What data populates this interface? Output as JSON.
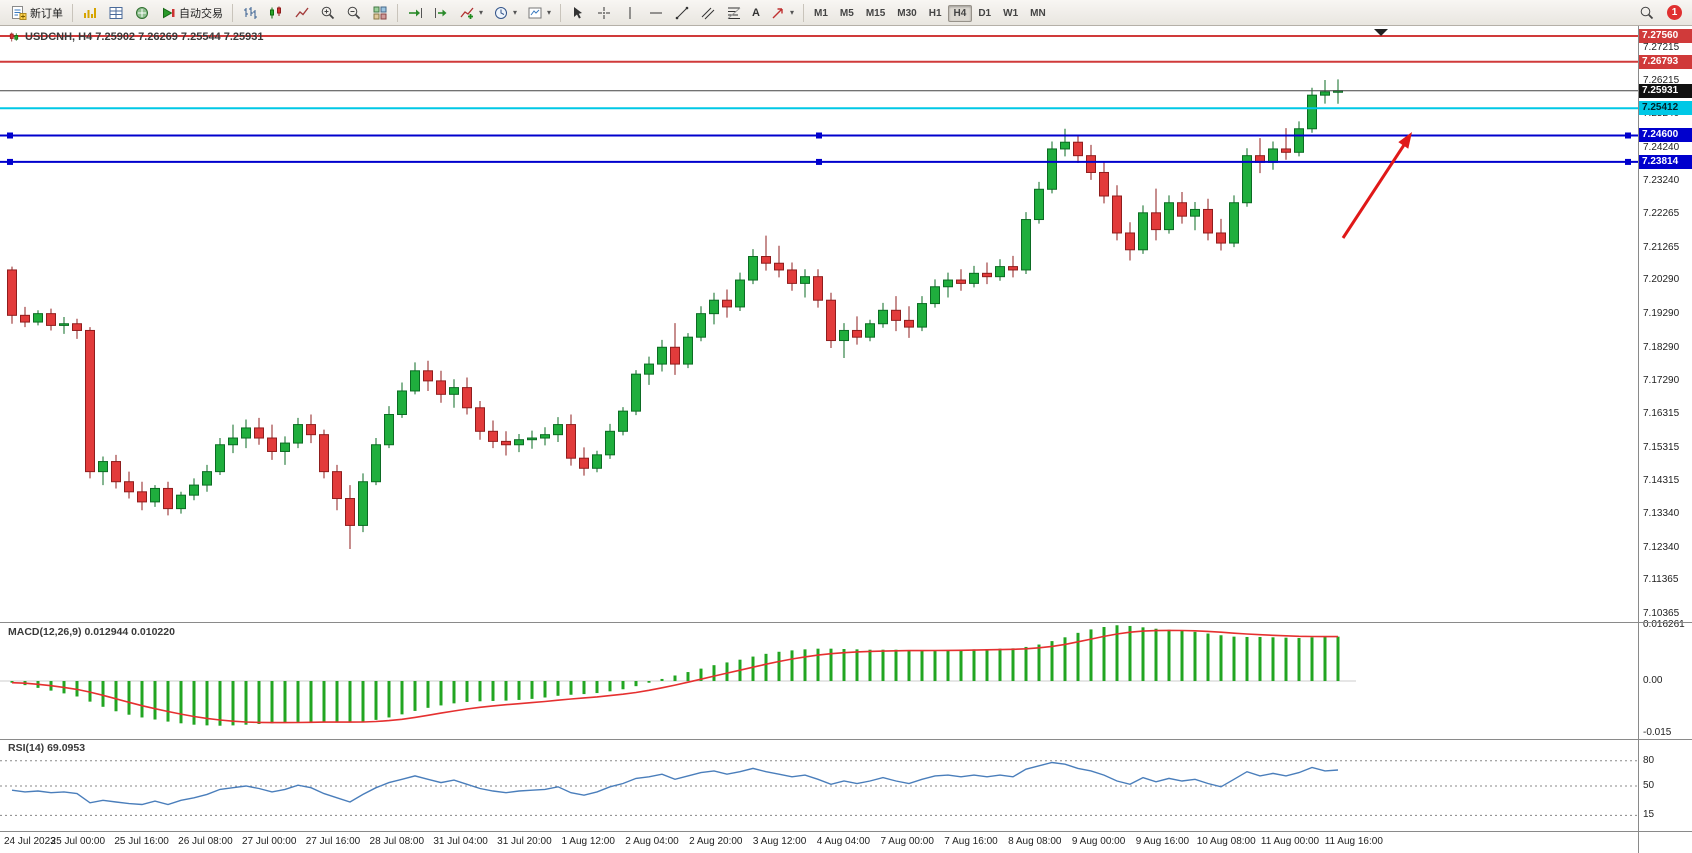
{
  "toolbar": {
    "new_order_label": "新订单",
    "autotrading_label": "自动交易",
    "timeframes": [
      "M1",
      "M5",
      "M15",
      "M30",
      "H1",
      "H4",
      "D1",
      "W1",
      "MN"
    ],
    "active_timeframe": "H4",
    "notification_count": "1",
    "icons": {
      "caret": "▾",
      "text_tool": "A"
    }
  },
  "chart": {
    "title": "USDCNH, H4 7.25902 7.26269 7.25544 7.25931",
    "symbol": "USDCNH",
    "period": "H4",
    "open": "7.25902",
    "high": "7.26269",
    "low": "7.25544",
    "close": "7.25931",
    "colors": {
      "bull": "#1fae3d",
      "bull_border": "#0b6b23",
      "bear": "#e23b3b",
      "bear_border": "#8f1d1d",
      "macd_hist": "#22a522",
      "macd_signal": "#e53030",
      "rsi_line": "#4a7ebb",
      "arrow": "#e01818"
    },
    "price_axis_ticks": [
      7.27215,
      7.26215,
      7.2524,
      7.2424,
      7.2324,
      7.22265,
      7.21265,
      7.2029,
      7.1929,
      7.1829,
      7.1729,
      7.16315,
      7.15315,
      7.14315,
      7.1334,
      7.1234,
      7.11365,
      7.10365
    ],
    "hlines": [
      {
        "price": 7.2756,
        "label": "7.27560",
        "color": "#d03a3a",
        "badge_bg": "#d03a3a",
        "badge_fg": "#ffffff",
        "width": 2
      },
      {
        "price": 7.26793,
        "label": "7.26793",
        "color": "#d03a3a",
        "badge_bg": "#d03a3a",
        "badge_fg": "#ffffff",
        "width": 2
      },
      {
        "price": 7.25931,
        "label": "7.25931",
        "color": "#444444",
        "badge_bg": "#111111",
        "badge_fg": "#ffffff",
        "width": 1
      },
      {
        "price": 7.25412,
        "label": "7.25412",
        "color": "#00c8e6",
        "badge_bg": "#00c8e6",
        "badge_fg": "#00222a",
        "width": 2
      },
      {
        "price": 7.246,
        "label": "7.24600",
        "color": "#0000cd",
        "badge_bg": "#0000cd",
        "badge_fg": "#ffffff",
        "width": 2,
        "handles": true
      },
      {
        "price": 7.23814,
        "label": "7.23814",
        "color": "#0000cd",
        "badge_bg": "#0000cd",
        "badge_fg": "#ffffff",
        "width": 2,
        "handles": true
      }
    ]
  },
  "macd": {
    "label": "MACD(12,26,9) 0.012944 0.010220",
    "scale": [
      {
        "v": 0.016261,
        "label": "0.016261"
      },
      {
        "v": 0,
        "label": "0.00"
      },
      {
        "v": -0.015,
        "label": "-0.015"
      }
    ]
  },
  "rsi": {
    "label": "RSI(14) 69.0953",
    "levels": [
      {
        "v": 80,
        "label": "80"
      },
      {
        "v": 50,
        "label": "50"
      },
      {
        "v": 15,
        "label": "15"
      }
    ]
  },
  "time_axis": [
    "24 Jul 2023",
    "25 Jul 00:00",
    "25 Jul 16:00",
    "26 Jul 08:00",
    "27 Jul 00:00",
    "27 Jul 16:00",
    "28 Jul 08:00",
    "31 Jul 04:00",
    "31 Jul 20:00",
    "1 Aug 12:00",
    "2 Aug 04:00",
    "2 Aug 20:00",
    "3 Aug 12:00",
    "4 Aug 04:00",
    "7 Aug 00:00",
    "7 Aug 16:00",
    "8 Aug 08:00",
    "9 Aug 00:00",
    "9 Aug 16:00",
    "10 Aug 08:00",
    "11 Aug 00:00",
    "11 Aug 16:00"
  ],
  "chart_data": [
    {
      "type": "candlestick",
      "title": "USDCNH H4",
      "y_range": [
        7.10365,
        7.279
      ],
      "ohlc": [
        [
          7.206,
          7.207,
          7.19,
          7.1925
        ],
        [
          7.1925,
          7.195,
          7.189,
          7.1905
        ],
        [
          7.1905,
          7.194,
          7.1895,
          7.193
        ],
        [
          7.193,
          7.1945,
          7.188,
          7.1895
        ],
        [
          7.1895,
          7.192,
          7.187,
          7.19
        ],
        [
          7.19,
          7.1915,
          7.1855,
          7.188
        ],
        [
          7.188,
          7.189,
          7.144,
          7.146
        ],
        [
          7.146,
          7.1505,
          7.142,
          7.149
        ],
        [
          7.149,
          7.151,
          7.141,
          7.143
        ],
        [
          7.143,
          7.146,
          7.138,
          7.14
        ],
        [
          7.14,
          7.143,
          7.1345,
          7.137
        ],
        [
          7.137,
          7.142,
          7.1355,
          7.141
        ],
        [
          7.141,
          7.143,
          7.133,
          7.135
        ],
        [
          7.135,
          7.14,
          7.1335,
          7.139
        ],
        [
          7.139,
          7.144,
          7.1375,
          7.142
        ],
        [
          7.142,
          7.148,
          7.14,
          7.146
        ],
        [
          7.146,
          7.156,
          7.145,
          7.154
        ],
        [
          7.154,
          7.16,
          7.1515,
          7.156
        ],
        [
          7.156,
          7.1615,
          7.153,
          7.159
        ],
        [
          7.159,
          7.162,
          7.154,
          7.156
        ],
        [
          7.156,
          7.16,
          7.1495,
          7.152
        ],
        [
          7.152,
          7.1565,
          7.148,
          7.1545
        ],
        [
          7.1545,
          7.162,
          7.153,
          7.16
        ],
        [
          7.16,
          7.163,
          7.1545,
          7.157
        ],
        [
          7.157,
          7.1585,
          7.144,
          7.146
        ],
        [
          7.146,
          7.148,
          7.1345,
          7.138
        ],
        [
          7.138,
          7.142,
          7.123,
          7.13
        ],
        [
          7.13,
          7.1455,
          7.128,
          7.143
        ],
        [
          7.143,
          7.156,
          7.142,
          7.154
        ],
        [
          7.154,
          7.1655,
          7.153,
          7.163
        ],
        [
          7.163,
          7.1725,
          7.162,
          7.17
        ],
        [
          7.17,
          7.1785,
          7.169,
          7.176
        ],
        [
          7.176,
          7.179,
          7.17,
          7.173
        ],
        [
          7.173,
          7.176,
          7.1665,
          7.169
        ],
        [
          7.169,
          7.1735,
          7.165,
          7.171
        ],
        [
          7.171,
          7.174,
          7.163,
          7.165
        ],
        [
          7.165,
          7.167,
          7.1555,
          7.158
        ],
        [
          7.158,
          7.1612,
          7.153,
          7.155
        ],
        [
          7.155,
          7.158,
          7.1508,
          7.154
        ],
        [
          7.154,
          7.1572,
          7.1518,
          7.1555
        ],
        [
          7.1555,
          7.1582,
          7.1528,
          7.156
        ],
        [
          7.156,
          7.1592,
          7.1538,
          7.157
        ],
        [
          7.157,
          7.1622,
          7.1548,
          7.16
        ],
        [
          7.16,
          7.163,
          7.1478,
          7.15
        ],
        [
          7.15,
          7.1532,
          7.1448,
          7.147
        ],
        [
          7.147,
          7.1522,
          7.1458,
          7.151
        ],
        [
          7.151,
          7.1602,
          7.1498,
          7.158
        ],
        [
          7.158,
          7.1652,
          7.1568,
          7.164
        ],
        [
          7.164,
          7.1762,
          7.1628,
          7.175
        ],
        [
          7.175,
          7.1802,
          7.1718,
          7.178
        ],
        [
          7.178,
          7.1852,
          7.1758,
          7.183
        ],
        [
          7.183,
          7.1902,
          7.1748,
          7.178
        ],
        [
          7.178,
          7.1872,
          7.1768,
          7.186
        ],
        [
          7.186,
          7.1952,
          7.1848,
          7.193
        ],
        [
          7.193,
          7.1992,
          7.1898,
          7.197
        ],
        [
          7.197,
          7.2002,
          7.1918,
          7.195
        ],
        [
          7.195,
          7.2052,
          7.1938,
          7.203
        ],
        [
          7.203,
          7.2122,
          7.2018,
          7.21
        ],
        [
          7.21,
          7.2162,
          7.2058,
          7.208
        ],
        [
          7.208,
          7.2132,
          7.2038,
          7.206
        ],
        [
          7.206,
          7.2082,
          7.1998,
          7.202
        ],
        [
          7.202,
          7.2062,
          7.1978,
          7.204
        ],
        [
          7.204,
          7.2062,
          7.1948,
          7.197
        ],
        [
          7.197,
          7.1992,
          7.1828,
          7.185
        ],
        [
          7.185,
          7.1902,
          7.1798,
          7.188
        ],
        [
          7.188,
          7.1922,
          7.1838,
          7.186
        ],
        [
          7.186,
          7.1912,
          7.1848,
          7.19
        ],
        [
          7.19,
          7.1962,
          7.1888,
          7.194
        ],
        [
          7.194,
          7.1982,
          7.1878,
          7.191
        ],
        [
          7.191,
          7.1952,
          7.1858,
          7.189
        ],
        [
          7.189,
          7.1982,
          7.1878,
          7.196
        ],
        [
          7.196,
          7.2032,
          7.1948,
          7.201
        ],
        [
          7.201,
          7.2052,
          7.1978,
          7.203
        ],
        [
          7.203,
          7.2062,
          7.1998,
          7.202
        ],
        [
          7.202,
          7.2072,
          7.2008,
          7.205
        ],
        [
          7.205,
          7.2082,
          7.2018,
          7.204
        ],
        [
          7.204,
          7.2092,
          7.2028,
          7.207
        ],
        [
          7.207,
          7.2102,
          7.2038,
          7.206
        ],
        [
          7.206,
          7.2232,
          7.2048,
          7.221
        ],
        [
          7.221,
          7.2322,
          7.2198,
          7.23
        ],
        [
          7.23,
          7.2442,
          7.2288,
          7.242
        ],
        [
          7.242,
          7.248,
          7.2398,
          7.244
        ],
        [
          7.244,
          7.2462,
          7.2378,
          7.24
        ],
        [
          7.24,
          7.2432,
          7.2328,
          7.235
        ],
        [
          7.235,
          7.2382,
          7.2258,
          7.228
        ],
        [
          7.228,
          7.2312,
          7.2148,
          7.217
        ],
        [
          7.217,
          7.2202,
          7.2088,
          7.212
        ],
        [
          7.212,
          7.2252,
          7.2108,
          7.223
        ],
        [
          7.223,
          7.2302,
          7.2148,
          7.218
        ],
        [
          7.218,
          7.2282,
          7.2168,
          7.226
        ],
        [
          7.226,
          7.2292,
          7.2198,
          7.222
        ],
        [
          7.222,
          7.2262,
          7.2178,
          7.224
        ],
        [
          7.224,
          7.2272,
          7.2148,
          7.217
        ],
        [
          7.217,
          7.2212,
          7.2118,
          7.214
        ],
        [
          7.214,
          7.2282,
          7.2128,
          7.226
        ],
        [
          7.226,
          7.2422,
          7.2248,
          7.24
        ],
        [
          7.24,
          7.2452,
          7.2348,
          7.238
        ],
        [
          7.238,
          7.2442,
          7.2358,
          7.242
        ],
        [
          7.242,
          7.2482,
          7.2388,
          7.241
        ],
        [
          7.241,
          7.2502,
          7.2398,
          7.248
        ],
        [
          7.248,
          7.2602,
          7.2468,
          7.258
        ],
        [
          7.258,
          7.2625,
          7.2555,
          7.259
        ],
        [
          7.25902,
          7.26269,
          7.25544,
          7.25931
        ]
      ]
    },
    {
      "type": "bar",
      "title": "MACD(12,26,9)",
      "ylim": [
        -0.015,
        0.016261
      ],
      "values": [
        -0.0005,
        -0.0012,
        -0.002,
        -0.0028,
        -0.0036,
        -0.0045,
        -0.006,
        -0.0075,
        -0.0088,
        -0.0098,
        -0.0106,
        -0.0112,
        -0.0118,
        -0.0123,
        -0.0127,
        -0.0129,
        -0.013,
        -0.0129,
        -0.0127,
        -0.0125,
        -0.0123,
        -0.0121,
        -0.0119,
        -0.0118,
        -0.0118,
        -0.0119,
        -0.012,
        -0.0118,
        -0.0113,
        -0.0106,
        -0.0097,
        -0.0087,
        -0.0078,
        -0.0071,
        -0.0065,
        -0.0061,
        -0.0059,
        -0.0058,
        -0.0057,
        -0.0055,
        -0.0052,
        -0.0048,
        -0.0043,
        -0.004,
        -0.0038,
        -0.0035,
        -0.003,
        -0.0024,
        -0.0015,
        -0.0005,
        0.0006,
        0.0016,
        0.0026,
        0.0036,
        0.0046,
        0.0054,
        0.0062,
        0.0071,
        0.0079,
        0.0085,
        0.0089,
        0.0092,
        0.0094,
        0.0094,
        0.0093,
        0.0092,
        0.0091,
        0.0091,
        0.0091,
        0.009,
        0.0089,
        0.0089,
        0.009,
        0.0091,
        0.0092,
        0.0093,
        0.0094,
        0.0095,
        0.0099,
        0.0106,
        0.0116,
        0.0127,
        0.014,
        0.015,
        0.0157,
        0.0162,
        0.016,
        0.0156,
        0.0152,
        0.0149,
        0.0146,
        0.0143,
        0.0138,
        0.0133,
        0.0129,
        0.0128,
        0.0128,
        0.0127,
        0.0126,
        0.0125,
        0.0127,
        0.0128,
        0.0129
      ]
    },
    {
      "type": "line",
      "title": "RSI(14)",
      "ylim": [
        0,
        100
      ],
      "levels": [
        80,
        50,
        15
      ],
      "values": [
        45,
        43,
        44,
        42,
        43,
        41,
        30,
        33,
        31,
        29,
        28,
        32,
        28,
        33,
        36,
        40,
        46,
        48,
        50,
        47,
        43,
        46,
        51,
        48,
        41,
        36,
        31,
        40,
        48,
        54,
        58,
        62,
        58,
        54,
        57,
        52,
        47,
        44,
        42,
        44,
        45,
        46,
        49,
        42,
        39,
        43,
        49,
        53,
        59,
        61,
        64,
        58,
        62,
        66,
        68,
        64,
        67,
        71,
        67,
        64,
        61,
        63,
        58,
        52,
        56,
        53,
        56,
        60,
        56,
        53,
        58,
        62,
        63,
        61,
        63,
        61,
        63,
        61,
        70,
        74,
        78,
        76,
        71,
        68,
        63,
        56,
        52,
        60,
        55,
        59,
        56,
        58,
        53,
        49,
        58,
        67,
        62,
        65,
        62,
        66,
        72,
        68,
        69.1
      ]
    }
  ]
}
